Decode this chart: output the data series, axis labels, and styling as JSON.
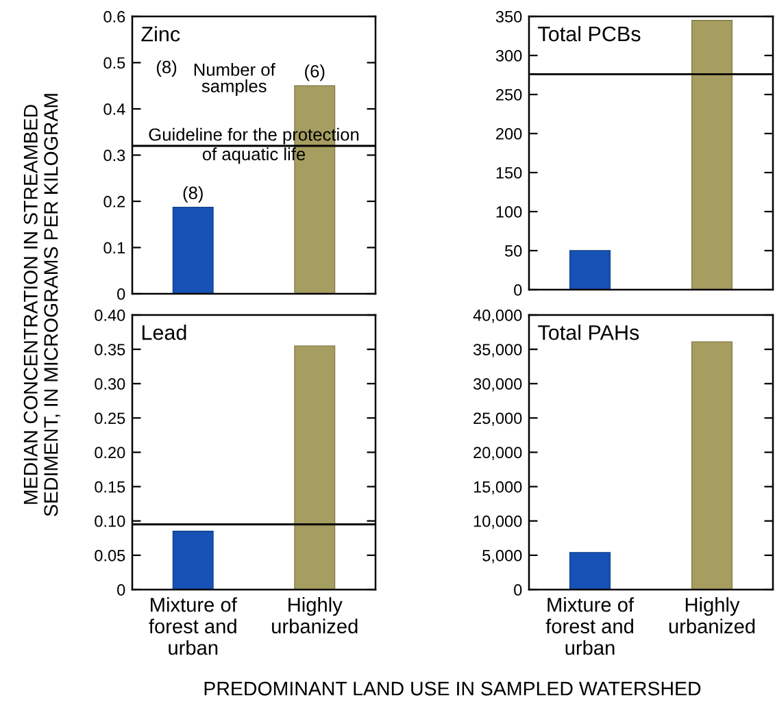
{
  "chart_data": [
    {
      "type": "bar",
      "title": "Zinc",
      "categories": [
        "Mixture of\nforest and\nurban",
        "Highly\nurbanized"
      ],
      "values": [
        0.187,
        0.45
      ],
      "colors": [
        "#1652b5",
        "#a69d60"
      ],
      "ylim": [
        0,
        0.6
      ],
      "yticks": [
        0,
        0.1,
        0.2,
        0.3,
        0.4,
        0.5,
        0.6
      ],
      "tick_labels": "y",
      "ylabel": "MEDIAN CONCENTRATION IN STREAMBED\nSEDIMENT, IN MICROGRAMS PER KILOGRAM",
      "ref_lines": [
        {
          "axis": "y",
          "value": 0.32,
          "label": "Guideline for the protection\nof aquatic life"
        }
      ],
      "annotations": [
        "(8)",
        "Number of\nsamples",
        {
          "text": "(8)",
          "x": "Mixture of\nforest and\nurban",
          "y": 0.187
        },
        {
          "text": "(6)",
          "x": "Highly\nurbanized",
          "y": 0.45
        }
      ]
    },
    {
      "type": "bar",
      "title": "Total PCBs",
      "categories": [
        "Mixture of\nforest and\nurban",
        "Highly\nurbanized"
      ],
      "values": [
        50,
        345
      ],
      "colors": [
        "#1652b5",
        "#a69d60"
      ],
      "ylim": [
        0,
        350
      ],
      "yticks": [
        0,
        50,
        100,
        150,
        200,
        250,
        300,
        350
      ],
      "tick_labels": "y",
      "ref_lines": [
        {
          "axis": "y",
          "value": 276
        }
      ]
    },
    {
      "type": "bar",
      "title": "Lead",
      "categories": [
        "Mixture of\nforest and\nurban",
        "Highly\nurbanized"
      ],
      "values": [
        0.085,
        0.355
      ],
      "colors": [
        "#1652b5",
        "#a69d60"
      ],
      "ylim": [
        0,
        0.4
      ],
      "yticks": [
        0,
        0.05,
        {
          "value": 0.1,
          "label": "0.10"
        },
        0.15,
        {
          "value": 0.2,
          "label": "0.20"
        },
        0.25,
        {
          "value": 0.3,
          "label": "0.30"
        },
        0.35,
        {
          "value": 0.4,
          "label": "0.40"
        }
      ],
      "xlabel": "PREDOMINANT LAND USE IN SAMPLED WATERSHED",
      "ref_lines": [
        {
          "axis": "y",
          "value": 0.095
        }
      ]
    },
    {
      "type": "bar",
      "title": "Total PAHs",
      "categories": [
        "Mixture of\nforest and\nurban",
        "Highly\nurbanized"
      ],
      "values": [
        5400,
        36100
      ],
      "colors": [
        "#1652b5",
        "#a69d60"
      ],
      "ylim": [
        0,
        40000
      ],
      "yticks": [
        0,
        {
          "value": 5000,
          "label": "5,000"
        },
        {
          "value": 10000,
          "label": "10,000"
        },
        {
          "value": 15000,
          "label": "15,000"
        },
        {
          "value": 20000,
          "label": "20,000"
        },
        {
          "value": 25000,
          "label": "25,000"
        },
        {
          "value": 30000,
          "label": "30,000"
        },
        {
          "value": 35000,
          "label": "35,000"
        },
        {
          "value": 40000,
          "label": "40,000"
        }
      ]
    }
  ]
}
